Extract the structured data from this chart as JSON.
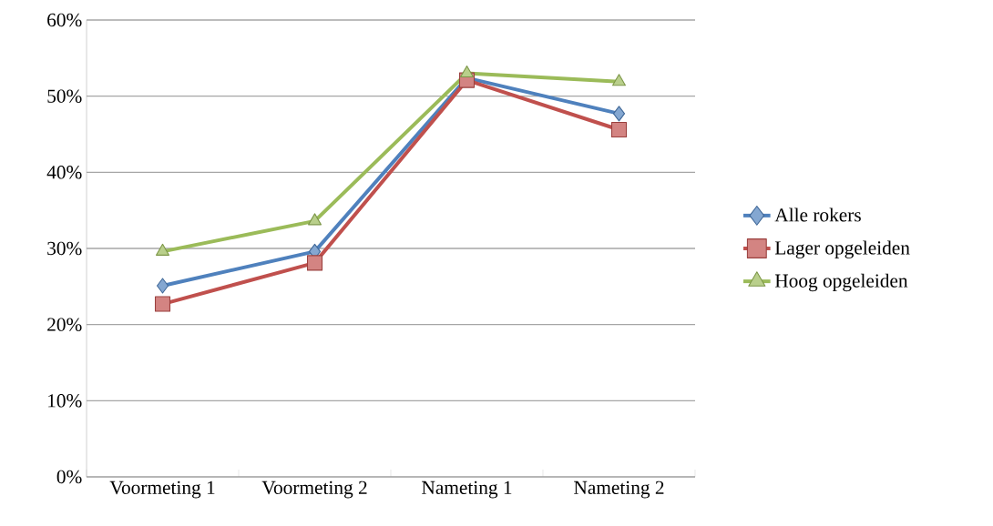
{
  "chart_data": {
    "type": "line",
    "categories": [
      "Voormeting 1",
      "Voormeting 2",
      "Nameting 1",
      "Nameting 2"
    ],
    "ylim": [
      0,
      60
    ],
    "yticks": [
      {
        "value": 0,
        "label": "0%"
      },
      {
        "value": 10,
        "label": "10%"
      },
      {
        "value": 20,
        "label": "20%"
      },
      {
        "value": 30,
        "label": "30%"
      },
      {
        "value": 40,
        "label": "40%"
      },
      {
        "value": 50,
        "label": "50%"
      },
      {
        "value": 60,
        "label": "60%"
      }
    ],
    "grid": "y",
    "legend": "right",
    "line_style": "solid",
    "series": [
      {
        "name": "Alle rokers",
        "color": "#4f81bd",
        "marker": "diamond",
        "values": [
          25.1,
          29.6,
          52.4,
          47.7
        ]
      },
      {
        "name": "Lager opgeleiden",
        "color": "#c0504d",
        "marker": "square",
        "values": [
          22.7,
          28.1,
          52.1,
          45.6
        ]
      },
      {
        "name": "Hoog opgeleiden",
        "color": "#9bbb59",
        "marker": "triangle",
        "values": [
          29.6,
          33.6,
          53.0,
          51.9
        ]
      }
    ]
  }
}
